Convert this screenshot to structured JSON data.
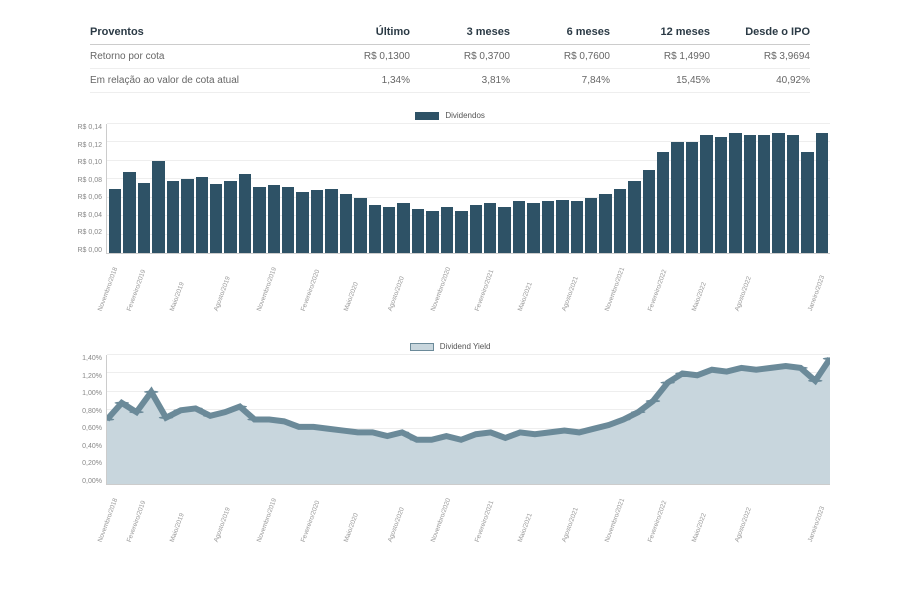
{
  "table": {
    "headers": [
      "Proventos",
      "Último",
      "3 meses",
      "6 meses",
      "12 meses",
      "Desde o IPO"
    ],
    "rows": [
      [
        "Retorno por cota",
        "R$ 0,1300",
        "R$ 0,3700",
        "R$ 0,7600",
        "R$ 1,4990",
        "R$ 3,9694"
      ],
      [
        "Em relação ao valor de cota atual",
        "1,34%",
        "3,81%",
        "7,84%",
        "15,45%",
        "40,92%"
      ]
    ]
  },
  "dates": [
    "Novembro/2018",
    "",
    "Fevereiro/2019",
    "",
    "",
    "Maio/2019",
    "",
    "",
    "Agosto/2019",
    "",
    "",
    "Novembro/2019",
    "",
    "",
    "Fevereiro/2020",
    "",
    "",
    "Maio/2020",
    "",
    "",
    "Agosto/2020",
    "",
    "",
    "Novembro/2020",
    "",
    "",
    "Fevereiro/2021",
    "",
    "",
    "Maio/2021",
    "",
    "",
    "Agosto/2021",
    "",
    "",
    "Novembro/2021",
    "",
    "",
    "Fevereiro/2022",
    "",
    "",
    "Maio/2022",
    "",
    "",
    "Agosto/2022",
    "",
    "",
    "",
    "",
    "Janeiro/2023"
  ],
  "chart1": {
    "type": "bar",
    "legend": "Dividendos",
    "bar_color": "#2e5266",
    "swatch_color": "#2e5266",
    "grid_color": "#eeeeee",
    "ylim": [
      0,
      0.14
    ],
    "yticks": [
      "R$ 0,14",
      "R$ 0,12",
      "R$ 0,10",
      "R$ 0,08",
      "R$ 0,06",
      "R$ 0,04",
      "R$ 0,02",
      "R$ 0,00"
    ],
    "yticks_vals": [
      0.14,
      0.12,
      0.1,
      0.08,
      0.06,
      0.04,
      0.02,
      0.0
    ],
    "values": [
      0.07,
      0.088,
      0.076,
      0.1,
      0.078,
      0.08,
      0.082,
      0.075,
      0.078,
      0.086,
      0.072,
      0.074,
      0.072,
      0.066,
      0.068,
      0.07,
      0.064,
      0.06,
      0.052,
      0.05,
      0.054,
      0.048,
      0.046,
      0.05,
      0.046,
      0.052,
      0.054,
      0.05,
      0.056,
      0.054,
      0.056,
      0.058,
      0.056,
      0.06,
      0.064,
      0.07,
      0.078,
      0.09,
      0.11,
      0.12,
      0.12,
      0.128,
      0.126,
      0.13,
      0.128,
      0.128,
      0.13,
      0.128,
      0.11,
      0.13
    ]
  },
  "chart2": {
    "type": "area",
    "legend": "Dividend Yield",
    "line_color": "#6b8a99",
    "fill_color": "#c8d6dd",
    "marker_color": "#6b8a99",
    "grid_color": "#eeeeee",
    "ylim": [
      0,
      1.4
    ],
    "yticks": [
      "1,40%",
      "1,20%",
      "1,00%",
      "0,80%",
      "0,60%",
      "0,40%",
      "0,20%",
      "0,00%"
    ],
    "yticks_vals": [
      1.4,
      1.2,
      1.0,
      0.8,
      0.6,
      0.4,
      0.2,
      0.0
    ],
    "values": [
      0.7,
      0.88,
      0.78,
      1.0,
      0.72,
      0.8,
      0.82,
      0.74,
      0.78,
      0.84,
      0.7,
      0.7,
      0.68,
      0.62,
      0.62,
      0.6,
      0.58,
      0.56,
      0.56,
      0.52,
      0.56,
      0.48,
      0.48,
      0.52,
      0.48,
      0.54,
      0.56,
      0.5,
      0.56,
      0.54,
      0.56,
      0.58,
      0.56,
      0.6,
      0.64,
      0.7,
      0.78,
      0.9,
      1.1,
      1.2,
      1.18,
      1.24,
      1.22,
      1.26,
      1.24,
      1.26,
      1.28,
      1.26,
      1.12,
      1.36
    ]
  }
}
